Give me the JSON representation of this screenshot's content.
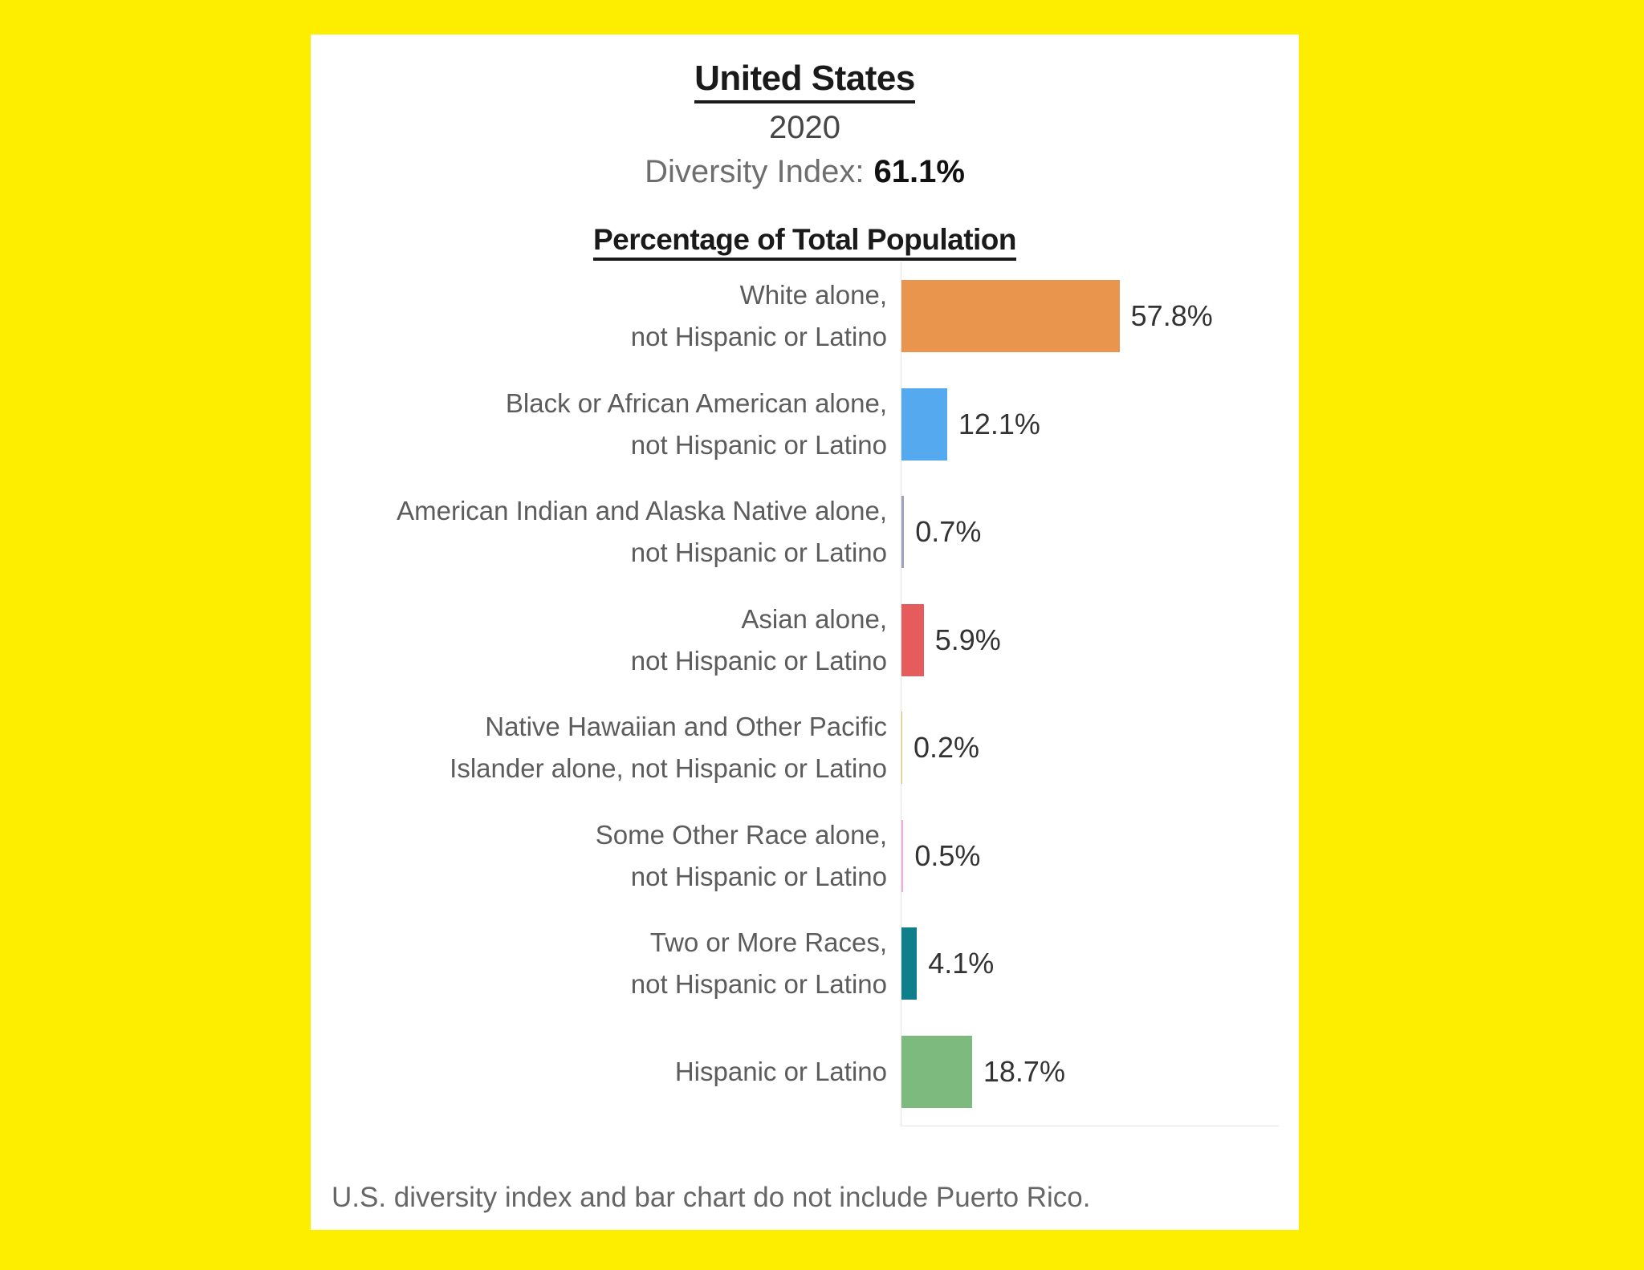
{
  "page": {
    "background_color": "#FDEE00",
    "card_color": "#FFFFFF"
  },
  "header": {
    "title": "United States",
    "year": "2020",
    "diversity_index_label": "Diversity Index:",
    "diversity_index_value": "61.1%"
  },
  "chart_data": {
    "type": "bar",
    "orientation": "horizontal",
    "title": "Percentage of Total Population",
    "xlabel": "",
    "ylabel": "",
    "xlim": [
      0,
      100
    ],
    "unit": "%",
    "grid": false,
    "value_label_position": "right-of-bar",
    "categories": [
      "White alone, not Hispanic or Latino",
      "Black or African American alone, not Hispanic or Latino",
      "American Indian and Alaska Native alone, not Hispanic or Latino",
      "Asian alone, not Hispanic or Latino",
      "Native Hawaiian and Other Pacific Islander alone, not Hispanic or Latino",
      "Some Other Race alone, not Hispanic or Latino",
      "Two or More Races, not Hispanic or Latino",
      "Hispanic or Latino"
    ],
    "category_lines": [
      [
        "White alone,",
        "not Hispanic or Latino"
      ],
      [
        "Black or African American alone,",
        "not Hispanic or Latino"
      ],
      [
        "American Indian and Alaska Native alone,",
        "not Hispanic or Latino"
      ],
      [
        "Asian alone,",
        "not Hispanic or Latino"
      ],
      [
        "Native Hawaiian and Other Pacific",
        "Islander alone, not Hispanic or Latino"
      ],
      [
        "Some Other Race alone,",
        "not Hispanic or Latino"
      ],
      [
        "Two or More Races,",
        "not Hispanic or Latino"
      ],
      [
        "Hispanic or Latino"
      ]
    ],
    "values": [
      57.8,
      12.1,
      0.7,
      5.9,
      0.2,
      0.5,
      4.1,
      18.7
    ],
    "value_labels": [
      "57.8%",
      "12.1%",
      "0.7%",
      "5.9%",
      "0.2%",
      "0.5%",
      "4.1%",
      "18.7%"
    ],
    "bar_colors": [
      "#E9954E",
      "#55AAEF",
      "#A0A4BA",
      "#E65C5C",
      "#E9C25F",
      "#F5A8DF",
      "#0F7F8B",
      "#7CBA7E"
    ]
  },
  "footnote": "U.S. diversity index and bar chart do not include Puerto Rico."
}
